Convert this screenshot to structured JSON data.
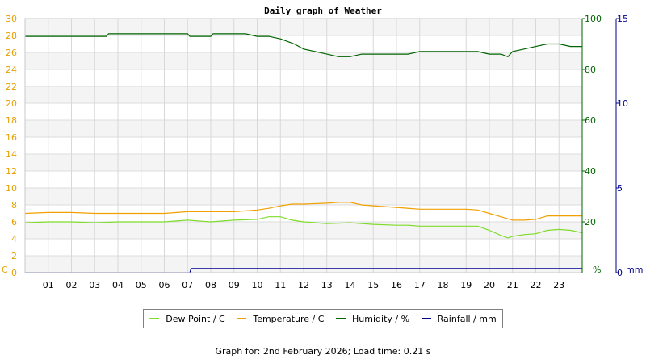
{
  "chart_data": {
    "type": "line",
    "title": "Daily graph of Weather",
    "x_ticks": [
      "01",
      "02",
      "03",
      "04",
      "05",
      "06",
      "07",
      "08",
      "09",
      "10",
      "11",
      "12",
      "13",
      "14",
      "15",
      "16",
      "17",
      "18",
      "19",
      "20",
      "21",
      "22",
      "23"
    ],
    "xlim": [
      0,
      24
    ],
    "axes": {
      "left": {
        "unit": "C",
        "ylim": [
          0,
          30
        ],
        "ticks": [
          0,
          2,
          4,
          6,
          8,
          10,
          12,
          14,
          16,
          18,
          20,
          22,
          24,
          26,
          28,
          30
        ],
        "color": "#e6a000"
      },
      "humidity": {
        "unit": "%",
        "ylim": [
          0,
          100
        ],
        "ticks": [
          0,
          20,
          40,
          60,
          80,
          100
        ],
        "color": "#006400"
      },
      "rain": {
        "unit": "mm",
        "ylim": [
          0,
          15
        ],
        "ticks": [
          0,
          5,
          10,
          15
        ],
        "color": "#00008b"
      }
    },
    "series": [
      {
        "name": "Dew Point / C",
        "axis": "left",
        "color": "#7fdc2a",
        "x": [
          0,
          1,
          2,
          3,
          4,
          5,
          6,
          7,
          8,
          9,
          10,
          10.5,
          11,
          11.5,
          12,
          13,
          14,
          15,
          16,
          16.5,
          17,
          18,
          19,
          19.5,
          20,
          20.5,
          20.8,
          21,
          21.5,
          22,
          22.5,
          23,
          23.5,
          24
        ],
        "values": [
          5.9,
          6.0,
          6.0,
          5.9,
          6.0,
          6.0,
          6.0,
          6.2,
          6.0,
          6.2,
          6.3,
          6.6,
          6.6,
          6.2,
          6.0,
          5.8,
          5.9,
          5.7,
          5.6,
          5.6,
          5.5,
          5.5,
          5.5,
          5.5,
          5.0,
          4.4,
          4.1,
          4.3,
          4.5,
          4.6,
          5.0,
          5.1,
          5.0,
          4.7
        ]
      },
      {
        "name": "Temperature / C",
        "axis": "left",
        "color": "#f0a000",
        "x": [
          0,
          1,
          2,
          3,
          4,
          5,
          6,
          7,
          8,
          9,
          10,
          10.5,
          11,
          11.5,
          12,
          13,
          13.5,
          14,
          14.5,
          15,
          16,
          17,
          18,
          19,
          19.5,
          20,
          20.5,
          21,
          21.5,
          22,
          22.5,
          23,
          24
        ],
        "values": [
          7.0,
          7.1,
          7.1,
          7.0,
          7.0,
          7.0,
          7.0,
          7.2,
          7.2,
          7.2,
          7.4,
          7.6,
          7.9,
          8.1,
          8.1,
          8.2,
          8.3,
          8.3,
          8.0,
          7.9,
          7.7,
          7.5,
          7.5,
          7.5,
          7.4,
          7.0,
          6.6,
          6.2,
          6.2,
          6.3,
          6.7,
          6.7,
          6.7
        ]
      },
      {
        "name": "Humidity / %",
        "axis": "humidity",
        "color": "#006400",
        "x": [
          0,
          1,
          2,
          3.5,
          3.6,
          4,
          5,
          6,
          7,
          7.1,
          8,
          8.1,
          9,
          9.5,
          10,
          10.5,
          11,
          11.3,
          11.6,
          12,
          12.5,
          13,
          13.5,
          14,
          14.5,
          15,
          16,
          16.5,
          17,
          17.5,
          18,
          19,
          19.5,
          20,
          20.5,
          20.8,
          21,
          21.5,
          22,
          22.5,
          23,
          23.5,
          24
        ],
        "values": [
          93,
          93,
          93,
          93,
          94,
          94,
          94,
          94,
          94,
          93,
          93,
          94,
          94,
          94,
          93,
          93,
          92,
          91,
          90,
          88,
          87,
          86,
          85,
          85,
          86,
          86,
          86,
          86,
          87,
          87,
          87,
          87,
          87,
          86,
          86,
          85,
          87,
          88,
          89,
          90,
          90,
          89,
          89
        ]
      },
      {
        "name": "Rainfall / mm",
        "axis": "rain",
        "color": "#00008b",
        "x": [
          0,
          7.1,
          7.15,
          24
        ],
        "values": [
          0,
          0,
          0.25,
          0.25
        ]
      }
    ],
    "grid": true,
    "legend_position": "bottom"
  },
  "footer": {
    "label": "Graph for:",
    "date": "2nd February 2026",
    "load_label": "Load time:",
    "load_value": "0.21 s"
  }
}
